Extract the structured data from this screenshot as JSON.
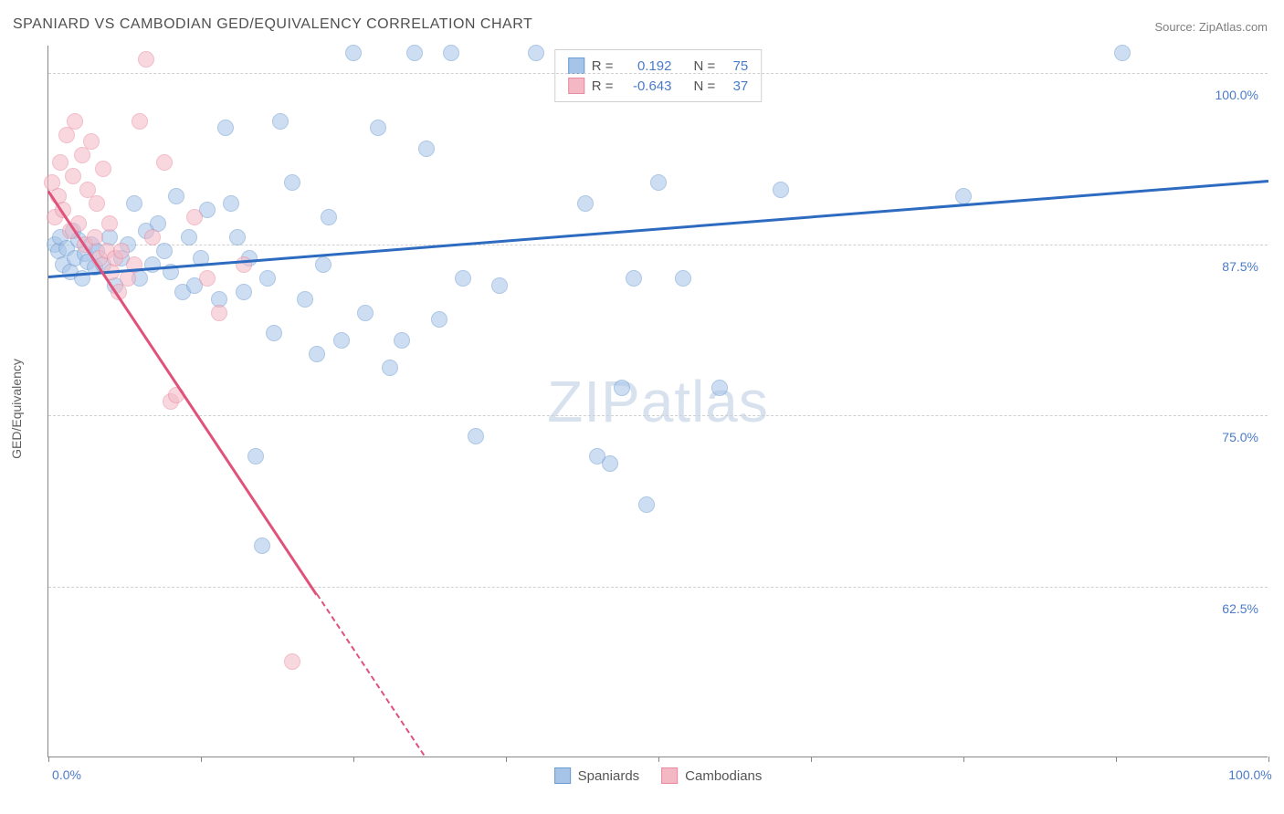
{
  "title": "SPANIARD VS CAMBODIAN GED/EQUIVALENCY CORRELATION CHART",
  "source_label": "Source: ZipAtlas.com",
  "y_axis_label": "GED/Equivalency",
  "watermark_bold": "ZIP",
  "watermark_light": "atlas",
  "chart": {
    "type": "scatter",
    "xlim": [
      0,
      100
    ],
    "ylim": [
      50,
      102
    ],
    "x_ticks": [
      0,
      12.5,
      25,
      37.5,
      50,
      62.5,
      75,
      87.5,
      100
    ],
    "x_tick_labels": {
      "0": "0.0%",
      "100": "100.0%"
    },
    "y_gridlines": [
      62.5,
      75,
      87.5,
      100
    ],
    "y_tick_labels": {
      "62.5": "62.5%",
      "75": "75.0%",
      "87.5": "87.5%",
      "100": "100.0%"
    },
    "background_color": "#ffffff",
    "grid_color": "#d0d0d0",
    "marker_radius": 9,
    "marker_opacity": 0.55,
    "series": [
      {
        "name": "Spaniards",
        "color_fill": "#a6c4e8",
        "color_stroke": "#6b9bd1",
        "line_color": "#2d6bc0",
        "r": 0.192,
        "n": 75,
        "trend_x1": 0,
        "trend_y1": 85.2,
        "trend_x2": 100,
        "trend_y2": 92.2,
        "points": [
          [
            0.5,
            87.5
          ],
          [
            0.8,
            87.0
          ],
          [
            1.0,
            88.0
          ],
          [
            1.2,
            86.0
          ],
          [
            1.5,
            87.2
          ],
          [
            1.8,
            85.5
          ],
          [
            2.0,
            88.5
          ],
          [
            2.2,
            86.5
          ],
          [
            2.5,
            87.8
          ],
          [
            2.8,
            85.0
          ],
          [
            3.0,
            86.8
          ],
          [
            3.2,
            86.2
          ],
          [
            3.5,
            87.5
          ],
          [
            3.8,
            85.8
          ],
          [
            4.0,
            87.0
          ],
          [
            4.5,
            86.0
          ],
          [
            5.0,
            88.0
          ],
          [
            5.5,
            84.5
          ],
          [
            6.0,
            86.5
          ],
          [
            6.5,
            87.5
          ],
          [
            7.0,
            90.5
          ],
          [
            7.5,
            85.0
          ],
          [
            8.0,
            88.5
          ],
          [
            8.5,
            86.0
          ],
          [
            9.0,
            89.0
          ],
          [
            9.5,
            87.0
          ],
          [
            10.0,
            85.5
          ],
          [
            10.5,
            91.0
          ],
          [
            11.0,
            84.0
          ],
          [
            11.5,
            88.0
          ],
          [
            12.0,
            84.5
          ],
          [
            12.5,
            86.5
          ],
          [
            13.0,
            90.0
          ],
          [
            14.0,
            83.5
          ],
          [
            14.5,
            96.0
          ],
          [
            15.0,
            90.5
          ],
          [
            15.5,
            88.0
          ],
          [
            16.0,
            84.0
          ],
          [
            16.5,
            86.5
          ],
          [
            17.0,
            72.0
          ],
          [
            17.5,
            65.5
          ],
          [
            18.0,
            85.0
          ],
          [
            18.5,
            81.0
          ],
          [
            19.0,
            96.5
          ],
          [
            20.0,
            92.0
          ],
          [
            21.0,
            83.5
          ],
          [
            22.0,
            79.5
          ],
          [
            22.5,
            86.0
          ],
          [
            23.0,
            89.5
          ],
          [
            24.0,
            80.5
          ],
          [
            25.0,
            101.5
          ],
          [
            26.0,
            82.5
          ],
          [
            27.0,
            96.0
          ],
          [
            28.0,
            78.5
          ],
          [
            29.0,
            80.5
          ],
          [
            30.0,
            101.5
          ],
          [
            31.0,
            94.5
          ],
          [
            32.0,
            82.0
          ],
          [
            33.0,
            101.5
          ],
          [
            34.0,
            85.0
          ],
          [
            35.0,
            73.5
          ],
          [
            37.0,
            84.5
          ],
          [
            40.0,
            101.5
          ],
          [
            44.0,
            90.5
          ],
          [
            45.0,
            72.0
          ],
          [
            46.0,
            71.5
          ],
          [
            47.0,
            77.0
          ],
          [
            48.0,
            85.0
          ],
          [
            49.0,
            68.5
          ],
          [
            50.0,
            92.0
          ],
          [
            52.0,
            85.0
          ],
          [
            55.0,
            77.0
          ],
          [
            60.0,
            91.5
          ],
          [
            75.0,
            91.0
          ],
          [
            88.0,
            101.5
          ]
        ]
      },
      {
        "name": "Cambodians",
        "color_fill": "#f4b8c5",
        "color_stroke": "#e88aa0",
        "line_color": "#e0527a",
        "r": -0.643,
        "n": 37,
        "trend_x1": 0,
        "trend_y1": 91.5,
        "trend_x2": 22,
        "trend_y2": 62.0,
        "dash_x1": 22,
        "dash_y1": 62.0,
        "dash_x2": 30.8,
        "dash_y2": 50.2,
        "points": [
          [
            0.3,
            92.0
          ],
          [
            0.5,
            89.5
          ],
          [
            0.8,
            91.0
          ],
          [
            1.0,
            93.5
          ],
          [
            1.2,
            90.0
          ],
          [
            1.5,
            95.5
          ],
          [
            1.8,
            88.5
          ],
          [
            2.0,
            92.5
          ],
          [
            2.2,
            96.5
          ],
          [
            2.5,
            89.0
          ],
          [
            2.8,
            94.0
          ],
          [
            3.0,
            87.5
          ],
          [
            3.2,
            91.5
          ],
          [
            3.5,
            95.0
          ],
          [
            3.8,
            88.0
          ],
          [
            4.0,
            90.5
          ],
          [
            4.2,
            86.5
          ],
          [
            4.5,
            93.0
          ],
          [
            4.8,
            87.0
          ],
          [
            5.0,
            89.0
          ],
          [
            5.2,
            85.5
          ],
          [
            5.5,
            86.5
          ],
          [
            5.8,
            84.0
          ],
          [
            6.0,
            87.0
          ],
          [
            6.5,
            85.0
          ],
          [
            7.0,
            86.0
          ],
          [
            7.5,
            96.5
          ],
          [
            8.0,
            101.0
          ],
          [
            8.5,
            88.0
          ],
          [
            9.5,
            93.5
          ],
          [
            10.0,
            76.0
          ],
          [
            10.5,
            76.5
          ],
          [
            12.0,
            89.5
          ],
          [
            13.0,
            85.0
          ],
          [
            14.0,
            82.5
          ],
          [
            16.0,
            86.0
          ],
          [
            20.0,
            57.0
          ]
        ]
      }
    ]
  },
  "legend_top": {
    "r_label": "R =",
    "n_label": "N ="
  },
  "legend_bottom": [
    {
      "label": "Spaniards",
      "fill": "#a6c4e8",
      "stroke": "#6b9bd1"
    },
    {
      "label": "Cambodians",
      "fill": "#f4b8c5",
      "stroke": "#e88aa0"
    }
  ]
}
